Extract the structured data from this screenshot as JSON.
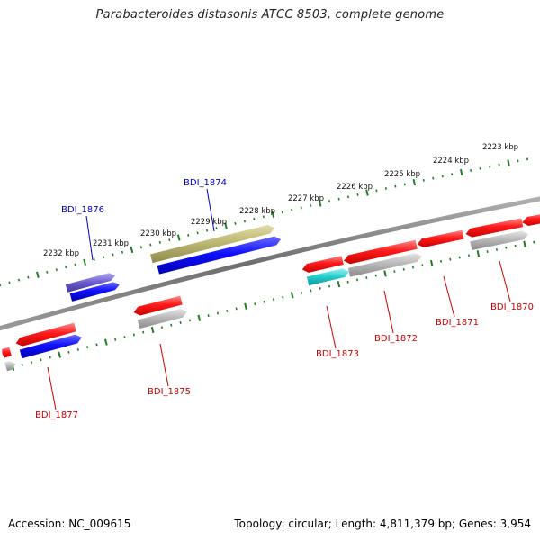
{
  "title": "Parabacteroides distasonis ATCC 8503, complete genome",
  "footer": {
    "accession": "Accession: NC_009615",
    "summary": "Topology: circular; Length: 4,811,379 bp; Genes: 3,954"
  },
  "colors": {
    "backbone": "#7f7f7f",
    "ticks": "#1f7f1f",
    "forward_label": "#0000c0",
    "reverse_label": "#cc0000",
    "red": "#ff1a1a",
    "blue": "#1010ff",
    "gray": "#b4b4b4",
    "olive": "#b9b46e",
    "cyan": "#22cccc",
    "purple": "#6a5acd"
  },
  "scale_labels": [
    "2223 kbp",
    "2224 kbp",
    "2225 kbp",
    "2226 kbp",
    "2227 kbp",
    "2228 kbp",
    "2229 kbp",
    "2230 kbp",
    "2231 kbp",
    "2232 kbp"
  ],
  "gene_labels": [
    {
      "name": "BDI_1876",
      "strand": "forward"
    },
    {
      "name": "BDI_1874",
      "strand": "forward"
    },
    {
      "name": "BDI_1877",
      "strand": "reverse"
    },
    {
      "name": "BDI_1875",
      "strand": "reverse"
    },
    {
      "name": "BDI_1873",
      "strand": "reverse"
    },
    {
      "name": "BDI_1872",
      "strand": "reverse"
    },
    {
      "name": "BDI_1871",
      "strand": "reverse"
    },
    {
      "name": "BDI_1870",
      "strand": "reverse"
    }
  ],
  "icons": [
    "forward-strand-arrow-icon",
    "reverse-strand-arrow-icon"
  ]
}
